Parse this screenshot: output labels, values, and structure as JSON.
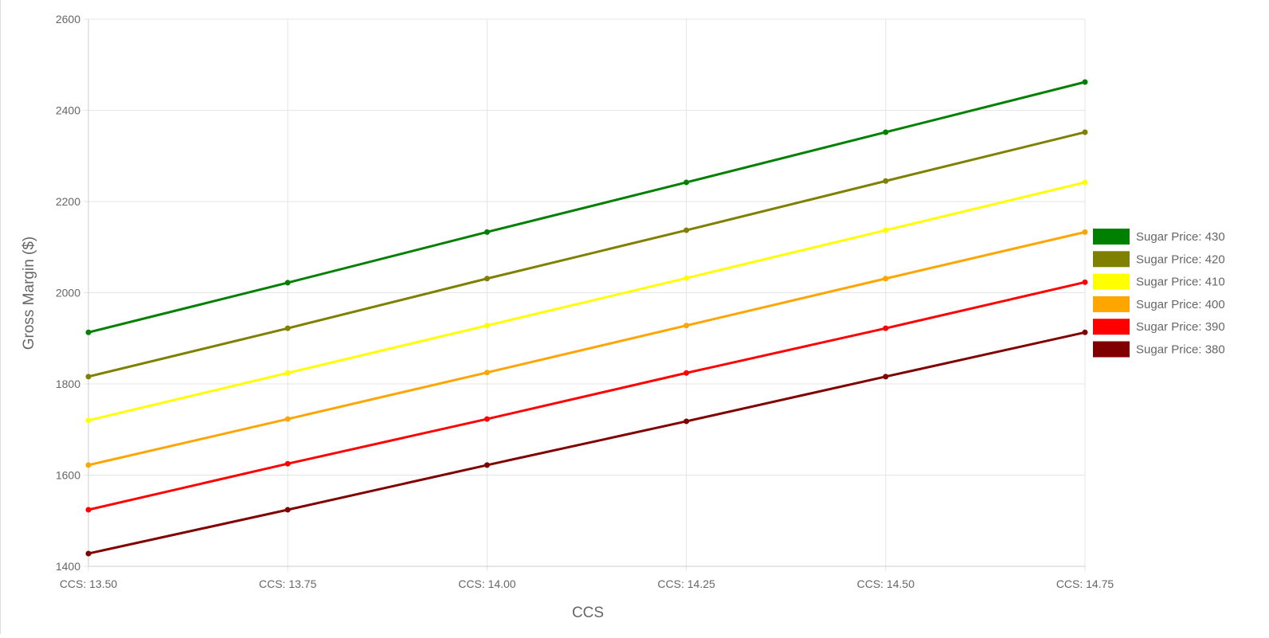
{
  "chart_data": {
    "type": "line",
    "xlabel": "CCS",
    "ylabel": "Gross Margin ($)",
    "categories": [
      "CCS: 13.50",
      "CCS: 13.75",
      "CCS: 14.00",
      "CCS: 14.25",
      "CCS: 14.50",
      "CCS: 14.75"
    ],
    "ylim": [
      1400,
      2600
    ],
    "yticks": [
      1400,
      1600,
      1800,
      2000,
      2200,
      2400,
      2600
    ],
    "grid": true,
    "legend": "right",
    "series": [
      {
        "name": "Sugar Price: 430",
        "color": "#008000",
        "values": [
          1913,
          2022,
          2133,
          2242,
          2352,
          2462
        ]
      },
      {
        "name": "Sugar Price: 420",
        "color": "#808000",
        "values": [
          1816,
          1922,
          2031,
          2137,
          2245,
          2352
        ]
      },
      {
        "name": "Sugar Price: 410",
        "color": "#FFFF00",
        "values": [
          1720,
          1824,
          1928,
          2032,
          2137,
          2242
        ]
      },
      {
        "name": "Sugar Price: 400",
        "color": "#FFA500",
        "values": [
          1622,
          1723,
          1825,
          1928,
          2031,
          2133
        ]
      },
      {
        "name": "Sugar Price: 390",
        "color": "#FF0000",
        "values": [
          1524,
          1625,
          1723,
          1824,
          1922,
          2023
        ]
      },
      {
        "name": "Sugar Price: 380",
        "color": "#800000",
        "values": [
          1428,
          1524,
          1622,
          1718,
          1816,
          1913
        ]
      }
    ]
  }
}
